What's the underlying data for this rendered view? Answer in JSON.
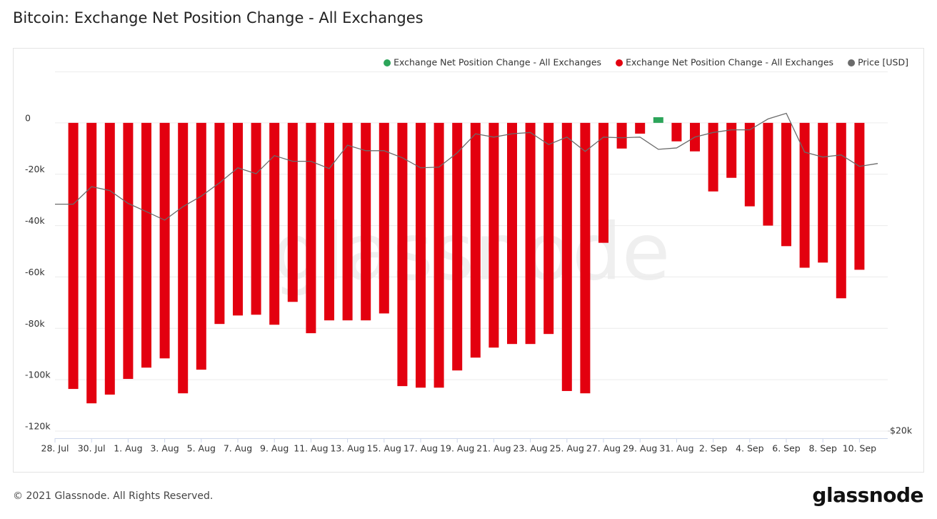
{
  "chart_data": {
    "type": "bar",
    "title": "Bitcoin: Exchange Net Position Change - All Exchanges",
    "watermark": "glassnode",
    "footer": "© 2021 Glassnode. All Rights Reserved.",
    "logo": "glassnode",
    "categories": [
      "28. Jul",
      null,
      "30. Jul",
      null,
      "1. Aug",
      null,
      "3. Aug",
      null,
      "5. Aug",
      null,
      "7. Aug",
      null,
      "9. Aug",
      null,
      "11. Aug",
      null,
      "13. Aug",
      null,
      "15. Aug",
      null,
      "17. Aug",
      null,
      "19. Aug",
      null,
      "21. Aug",
      null,
      "23. Aug",
      null,
      "25. Aug",
      null,
      "27. Aug",
      null,
      "29. Aug",
      null,
      "31. Aug",
      null,
      "2. Sep",
      null,
      "4. Sep",
      null,
      "6. Sep",
      null,
      "8. Sep",
      null,
      "10. Sep",
      null
    ],
    "series": [
      {
        "name": "Exchange Net Position Change - All Exchanges",
        "color": "#2ca55a",
        "values": [
          null,
          null,
          null,
          null,
          null,
          null,
          null,
          null,
          null,
          null,
          null,
          null,
          null,
          null,
          null,
          null,
          null,
          null,
          null,
          null,
          null,
          null,
          null,
          null,
          null,
          null,
          null,
          null,
          null,
          null,
          null,
          null,
          null,
          2200,
          null,
          null,
          null,
          null,
          null,
          null,
          null,
          null,
          null,
          null,
          null,
          null
        ]
      },
      {
        "name": "Exchange Net Position Change - All Exchanges",
        "color": "#e3000f",
        "values": [
          null,
          -103600,
          -109200,
          -105800,
          -99700,
          -95300,
          -91700,
          -105300,
          -96100,
          -78300,
          -75000,
          -74700,
          -78600,
          -69700,
          -81900,
          -76900,
          -76900,
          -76900,
          -74200,
          -102500,
          -103100,
          -103100,
          -96400,
          -91400,
          -87500,
          -86100,
          -86100,
          -82200,
          -104400,
          -105300,
          -46700,
          -10000,
          -4200,
          null,
          -7200,
          -11100,
          -26700,
          -21400,
          -32500,
          -40000,
          -48000,
          -56400,
          -54400,
          -68300,
          -57200,
          null
        ]
      },
      {
        "name": "Price [USD]",
        "color": "#6b6b6b",
        "axis": "y2",
        "kind": "line",
        "values": [
          40000,
          40000,
          42200,
          41700,
          40100,
          39100,
          38100,
          39700,
          41000,
          42700,
          44700,
          43900,
          46400,
          45600,
          45600,
          44600,
          47900,
          47100,
          47100,
          46100,
          44700,
          44800,
          46800,
          49600,
          49100,
          49600,
          49800,
          48000,
          49100,
          47000,
          49100,
          49000,
          49100,
          47300,
          47500,
          49100,
          49800,
          50200,
          50200,
          51900,
          52800,
          46900,
          46200,
          46500,
          44900,
          45300
        ]
      }
    ],
    "ylim": [
      -120000,
      20000
    ],
    "yticks": [
      {
        "value": -120000,
        "label": "-120k"
      },
      {
        "value": -100000,
        "label": "-100k"
      },
      {
        "value": -80000,
        "label": "-80k"
      },
      {
        "value": -60000,
        "label": "-60k"
      },
      {
        "value": -40000,
        "label": "-40k"
      },
      {
        "value": -20000,
        "label": "-20k"
      },
      0
    ],
    "y2lim": [
      20000,
      60000
    ],
    "y2log": true,
    "y2ticks": [
      {
        "value": 20000,
        "label": "$20k"
      }
    ],
    "grid": true,
    "legend": "top-right"
  }
}
